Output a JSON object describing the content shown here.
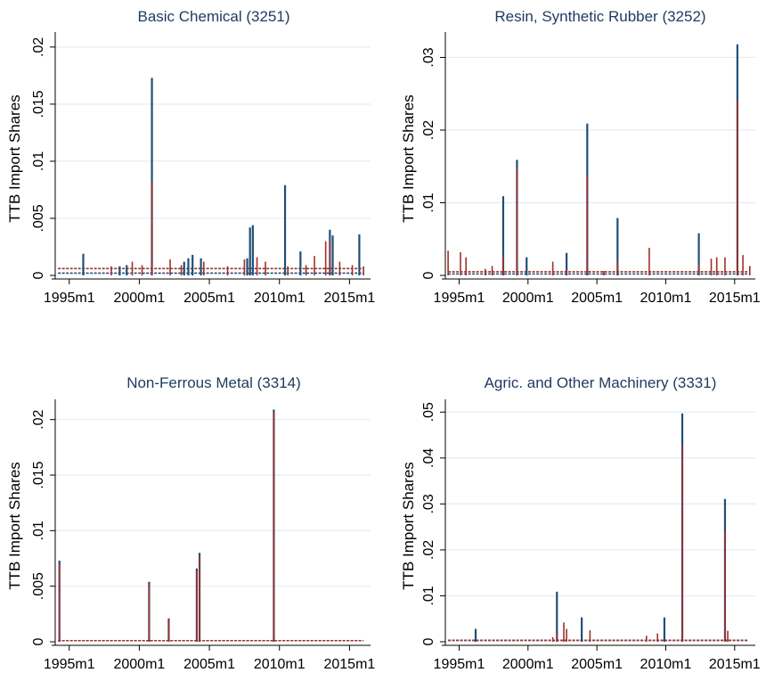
{
  "colors": {
    "series1": "#1f4e79",
    "series2": "#a0302b",
    "grid": "#e3ecf2",
    "title": "#1e3a5f"
  },
  "chart_data": [
    {
      "type": "bar",
      "title": "Basic Chemical (3251)",
      "ylabel": "TTB Import Shares",
      "xlabel": "",
      "xlim": [
        1994,
        2016.5
      ],
      "xticks": [
        1995,
        2000,
        2005,
        2010,
        2015
      ],
      "xtick_labels": [
        "1995m1",
        "2000m1",
        "2005m1",
        "2010m1",
        "2015m1"
      ],
      "ylim": [
        0,
        0.021
      ],
      "yticks": [
        0,
        0.005,
        0.01,
        0.015,
        0.02
      ],
      "ytick_labels": [
        "0",
        ".005",
        ".01",
        ".015",
        ".02"
      ],
      "grid": true,
      "baseline": [
        0.0002,
        0.0006
      ],
      "series": [
        {
          "x": [
            1996.0,
            1998.6,
            1999.1,
            2000.9,
            2003.2,
            2003.5,
            2003.8,
            2004.4,
            2007.7,
            2007.9,
            2008.1,
            2010.4,
            2011.5,
            2013.6,
            2013.8,
            2015.7
          ],
          "values": [
            0.0019,
            0.0008,
            0.0009,
            0.0173,
            0.0012,
            0.0015,
            0.0018,
            0.0015,
            0.0015,
            0.0042,
            0.0044,
            0.0079,
            0.0021,
            0.004,
            0.0035,
            0.0036
          ]
        },
        {
          "x": [
            1998.0,
            1999.5,
            2000.2,
            2000.9,
            2002.2,
            2003.0,
            2004.6,
            2006.3,
            2007.5,
            2008.4,
            2009.0,
            2010.6,
            2011.9,
            2012.5,
            2013.3,
            2013.6,
            2014.3,
            2015.2,
            2016.0
          ],
          "values": [
            0.0008,
            0.0012,
            0.0009,
            0.0082,
            0.0014,
            0.0009,
            0.0012,
            0.0008,
            0.0014,
            0.0016,
            0.0012,
            0.0008,
            0.0009,
            0.0017,
            0.003,
            0.003,
            0.0012,
            0.0009,
            0.0008
          ]
        }
      ]
    },
    {
      "type": "bar",
      "title": "Resin, Synthetic Rubber (3252)",
      "ylabel": "TTB Import Shares",
      "xlabel": "",
      "xlim": [
        1994,
        2016.5
      ],
      "xticks": [
        1995,
        2000,
        2005,
        2010,
        2015
      ],
      "xtick_labels": [
        "1995m1",
        "2000m1",
        "2005m1",
        "2010m1",
        "2015m1"
      ],
      "ylim": [
        0,
        0.033
      ],
      "yticks": [
        0,
        0.01,
        0.02,
        0.03
      ],
      "ytick_labels": [
        "0",
        ".01",
        ".02",
        ".03"
      ],
      "grid": true,
      "baseline": [
        0.0002,
        0.0005
      ],
      "series": [
        {
          "x": [
            1998.2,
            1999.2,
            1999.9,
            2002.8,
            2004.3,
            2006.5,
            2012.4,
            2015.2
          ],
          "values": [
            0.0109,
            0.0159,
            0.0025,
            0.0031,
            0.0209,
            0.0079,
            0.0058,
            0.0318
          ]
        },
        {
          "x": [
            1994.2,
            1995.1,
            1995.5,
            1996.9,
            1997.4,
            1998.2,
            1999.2,
            2001.8,
            2002.8,
            2004.3,
            2005.5,
            2006.5,
            2008.8,
            2012.4,
            2013.3,
            2013.7,
            2014.3,
            2015.2,
            2015.6,
            2016.1
          ],
          "values": [
            0.0034,
            0.0032,
            0.0025,
            0.0009,
            0.0013,
            0.0028,
            0.0148,
            0.0019,
            0.0008,
            0.0137,
            0.0006,
            0.0019,
            0.0038,
            0.0015,
            0.0023,
            0.0025,
            0.0025,
            0.0241,
            0.0028,
            0.0013
          ]
        }
      ]
    },
    {
      "type": "bar",
      "title": "Non-Ferrous Metal (3314)",
      "ylabel": "TTB Import Shares",
      "xlabel": "",
      "xlim": [
        1994,
        2016.5
      ],
      "xticks": [
        1995,
        2000,
        2005,
        2010,
        2015
      ],
      "xtick_labels": [
        "1995m1",
        "2000m1",
        "2005m1",
        "2010m1",
        "2015m1"
      ],
      "ylim": [
        0,
        0.0215
      ],
      "yticks": [
        0,
        0.005,
        0.01,
        0.015,
        0.02
      ],
      "ytick_labels": [
        "0",
        ".005",
        ".01",
        ".015",
        ".02"
      ],
      "grid": true,
      "baseline": [
        0.0001,
        0.0001
      ],
      "series": [
        {
          "x": [
            1994.3,
            2000.7,
            2002.1,
            2004.1,
            2004.3,
            2009.6
          ],
          "values": [
            0.0073,
            0.0054,
            0.0021,
            0.0066,
            0.008,
            0.0209
          ]
        },
        {
          "x": [
            1994.3,
            2000.7,
            2002.1,
            2004.1,
            2004.3,
            2009.6
          ],
          "values": [
            0.007,
            0.0052,
            0.002,
            0.0063,
            0.0077,
            0.0207
          ]
        }
      ]
    },
    {
      "type": "bar",
      "title": "Agric. and Other Machinery  (3331)",
      "ylabel": "TTB Import Shares",
      "xlabel": "",
      "xlim": [
        1994,
        2016.5
      ],
      "xticks": [
        1995,
        2000,
        2005,
        2010,
        2015
      ],
      "xtick_labels": [
        "1995m1",
        "2000m1",
        "2005m1",
        "2010m1",
        "2015m1"
      ],
      "ylim": [
        0,
        0.052
      ],
      "yticks": [
        0,
        0.01,
        0.02,
        0.03,
        0.04,
        0.05
      ],
      "ytick_labels": [
        "0",
        ".01",
        ".02",
        ".03",
        ".04",
        ".05"
      ],
      "grid": true,
      "baseline": [
        0.0003,
        0.0003
      ],
      "series": [
        {
          "x": [
            1996.2,
            2002.1,
            2003.9,
            2009.9,
            2011.2,
            2014.3
          ],
          "values": [
            0.0028,
            0.0109,
            0.0053,
            0.0053,
            0.0497,
            0.0311
          ]
        },
        {
          "x": [
            2001.8,
            2002.1,
            2002.6,
            2002.8,
            2004.5,
            2008.6,
            2009.4,
            2011.2,
            2014.3,
            2014.5
          ],
          "values": [
            0.001,
            0.0018,
            0.0042,
            0.0028,
            0.0025,
            0.0013,
            0.0018,
            0.0427,
            0.0241,
            0.0024
          ]
        }
      ]
    }
  ]
}
